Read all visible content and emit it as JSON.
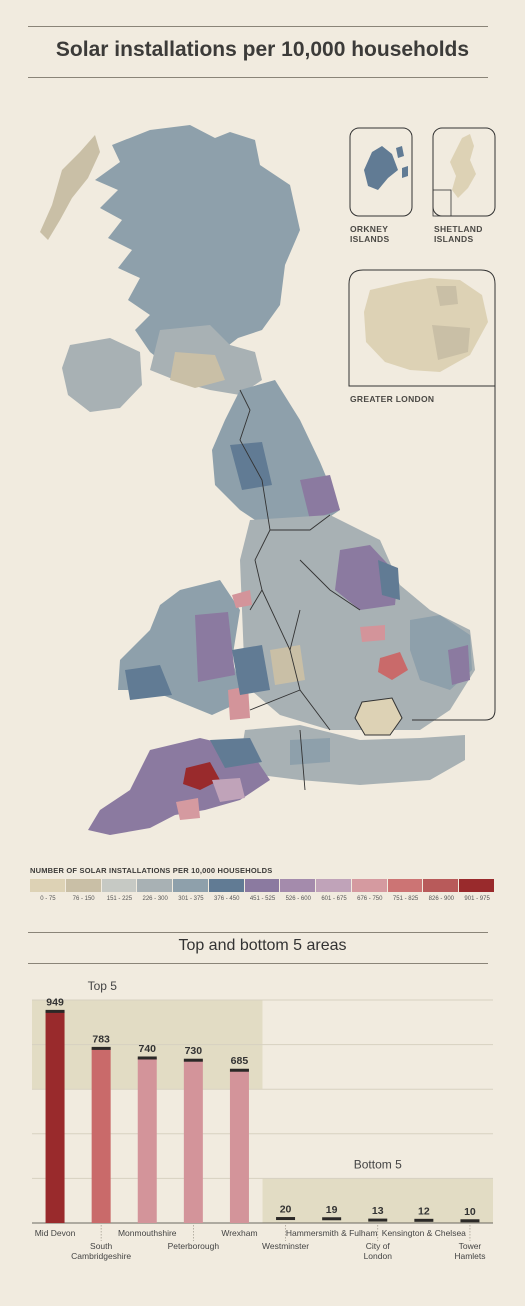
{
  "title": "Solar installations per 10,000 households",
  "insets": {
    "orkney": "ORKNEY ISLANDS",
    "shetland": "SHETLAND ISLANDS",
    "london": "GREATER LONDON"
  },
  "legend": {
    "title": "NUMBER OF SOLAR INSTALLATIONS PER 10,000 HOUSEHOLDS",
    "bins": [
      {
        "label": "0 - 75",
        "color": "#ddd2b5"
      },
      {
        "label": "76 - 150",
        "color": "#c9bfa6"
      },
      {
        "label": "151 - 225",
        "color": "#c6c9c4"
      },
      {
        "label": "226 - 300",
        "color": "#a8b1b4"
      },
      {
        "label": "301 - 375",
        "color": "#8ea0ab"
      },
      {
        "label": "376 - 450",
        "color": "#617b94"
      },
      {
        "label": "451 - 525",
        "color": "#8b7aa0"
      },
      {
        "label": "526 - 600",
        "color": "#a48bac"
      },
      {
        "label": "601 - 675",
        "color": "#c0a3b9"
      },
      {
        "label": "676 - 750",
        "color": "#d59aa0"
      },
      {
        "label": "751 - 825",
        "color": "#cc7474"
      },
      {
        "label": "826 - 900",
        "color": "#b85a5a"
      },
      {
        "label": "901 - 975",
        "color": "#992a2c"
      }
    ]
  },
  "bar_section_title": "Top and bottom 5 areas",
  "chart_data": {
    "type": "bar",
    "title": "Top and bottom 5 areas",
    "groups": [
      {
        "label": "Top 5",
        "start": 0,
        "end": 5
      },
      {
        "label": "Bottom 5",
        "start": 5,
        "end": 10
      }
    ],
    "categories": [
      "Mid Devon",
      "South Cambridgeshire",
      "Monmouthshire",
      "Peterborough",
      "Wrexham",
      "Westminster",
      "Hammersmith & Fulham",
      "City of London",
      "Kensington & Chelsea",
      "Tower Hamlets"
    ],
    "values": [
      949,
      783,
      740,
      730,
      685,
      20,
      19,
      13,
      12,
      10
    ],
    "bar_colors": [
      "#992a2c",
      "#c96a6a",
      "#d3949a",
      "#d3949a",
      "#d3949a",
      "#ddd2b5",
      "#ddd2b5",
      "#ddd2b5",
      "#ddd2b5",
      "#ddd2b5"
    ],
    "ylim": [
      0,
      1000
    ],
    "grid": true
  }
}
